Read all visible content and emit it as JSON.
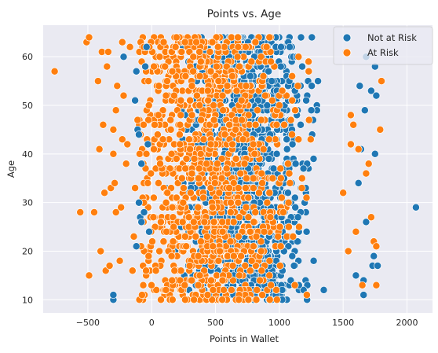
{
  "chart_data": {
    "type": "scatter",
    "title": "Points vs. Age",
    "xlabel": "Points in Wallet",
    "ylabel": "Age",
    "xlim": [
      -850,
      2200
    ],
    "ylim": [
      7.3,
      66.5
    ],
    "xticks": [
      -500,
      0,
      500,
      1000,
      1500,
      2000
    ],
    "yticks": [
      10,
      20,
      30,
      40,
      50,
      60
    ],
    "grid": true,
    "background": "#eaeaf2",
    "legend_position": "top-right",
    "series": [
      {
        "name": "Not at Risk",
        "color": "#1f77b4",
        "points": [
          [
            -300,
            10
          ],
          [
            -300,
            11
          ],
          [
            -220,
            60
          ],
          [
            -130,
            51
          ],
          [
            -120,
            57
          ],
          [
            -110,
            45
          ],
          [
            -100,
            44
          ],
          [
            -100,
            30
          ],
          [
            -90,
            27
          ],
          [
            -80,
            26
          ],
          [
            -80,
            38
          ],
          [
            -120,
            21
          ],
          [
            -60,
            28
          ],
          [
            -50,
            58
          ],
          [
            -40,
            62
          ],
          [
            -30,
            42
          ],
          [
            -20,
            24
          ],
          [
            1660,
            14
          ],
          [
            1660,
            11
          ],
          [
            1670,
            49
          ],
          [
            1680,
            60
          ],
          [
            1720,
            53
          ],
          [
            1730,
            17
          ],
          [
            1740,
            19
          ],
          [
            1750,
            40
          ],
          [
            1750,
            58
          ],
          [
            1760,
            52
          ],
          [
            1770,
            17
          ],
          [
            2070,
            29
          ],
          [
            1680,
            26
          ],
          [
            1600,
            15
          ],
          [
            1620,
            34
          ],
          [
            1630,
            54
          ],
          [
            1640,
            41
          ]
        ],
        "dense_band": {
          "x_range": [
            0,
            1350
          ],
          "center": 750,
          "spread": 220,
          "y_range": [
            10,
            64
          ],
          "count": 1400
        }
      },
      {
        "name": "At Risk",
        "color": "#ff7f0e",
        "points": [
          [
            -760,
            57
          ],
          [
            -560,
            28
          ],
          [
            -510,
            63
          ],
          [
            -490,
            64
          ],
          [
            -490,
            15
          ],
          [
            -450,
            28
          ],
          [
            -420,
            55
          ],
          [
            -410,
            41
          ],
          [
            -400,
            20
          ],
          [
            -390,
            61
          ],
          [
            -380,
            46
          ],
          [
            -370,
            32
          ],
          [
            -360,
            16
          ],
          [
            -350,
            58
          ],
          [
            -340,
            61
          ],
          [
            -330,
            17
          ],
          [
            -320,
            33
          ],
          [
            -300,
            40
          ],
          [
            -300,
            45
          ],
          [
            -290,
            34
          ],
          [
            -280,
            49
          ],
          [
            -280,
            28
          ],
          [
            -270,
            54
          ],
          [
            -250,
            18
          ],
          [
            -240,
            29
          ],
          [
            -230,
            63
          ],
          [
            -230,
            43
          ],
          [
            -220,
            52
          ],
          [
            -200,
            38
          ],
          [
            -190,
            42
          ],
          [
            -170,
            62
          ],
          [
            -150,
            16
          ],
          [
            -140,
            23
          ],
          [
            -130,
            33
          ],
          [
            -110,
            47
          ],
          [
            1500,
            32
          ],
          [
            1520,
            61
          ],
          [
            1540,
            20
          ],
          [
            1560,
            48
          ],
          [
            1580,
            46
          ],
          [
            1600,
            24
          ],
          [
            1620,
            41
          ],
          [
            1650,
            13
          ],
          [
            1680,
            36
          ],
          [
            1700,
            38
          ],
          [
            1720,
            27
          ],
          [
            1740,
            22
          ],
          [
            1760,
            21
          ],
          [
            1790,
            45
          ],
          [
            1800,
            55
          ],
          [
            1760,
            13
          ],
          [
            1560,
            42
          ]
        ],
        "dense_band": {
          "x_range": [
            -100,
            1250
          ],
          "center": 420,
          "spread": 320,
          "y_range": [
            10,
            64
          ],
          "count": 1100
        }
      }
    ]
  }
}
